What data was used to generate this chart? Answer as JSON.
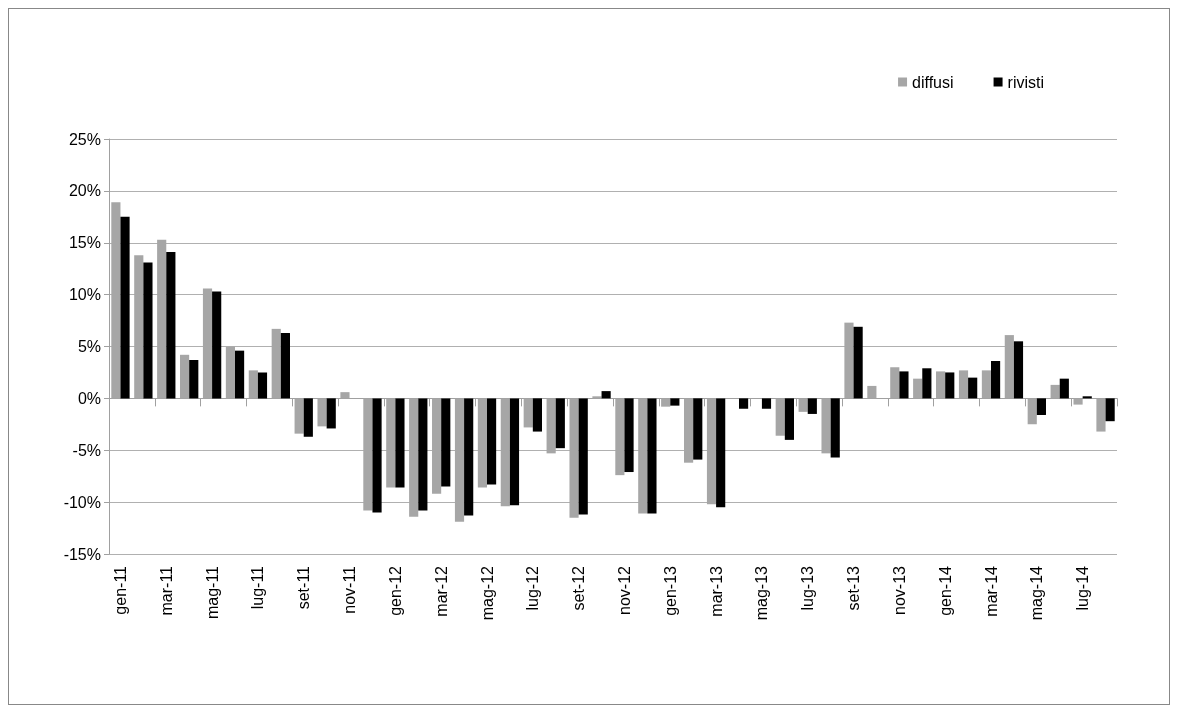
{
  "chart_data": {
    "type": "bar",
    "categories": [
      "gen-11",
      null,
      "mar-11",
      null,
      "mag-11",
      null,
      "lug-11",
      null,
      "set-11",
      null,
      "nov-11",
      null,
      "gen-12",
      null,
      "mar-12",
      null,
      "mag-12",
      null,
      "lug-12",
      null,
      "set-12",
      null,
      "nov-12",
      null,
      "gen-13",
      null,
      "mar-13",
      null,
      "mag-13",
      null,
      "lug-13",
      null,
      "set-13",
      null,
      "nov-13",
      null,
      "gen-14",
      null,
      "mar-14",
      null,
      "mag-14",
      null,
      "lug-14",
      null
    ],
    "series": [
      {
        "name": "diffusi",
        "color": "#a6a6a6",
        "values": [
          18.9,
          13.8,
          15.3,
          4.2,
          10.6,
          5.0,
          2.7,
          6.7,
          -3.4,
          -2.7,
          0.6,
          -10.8,
          -8.6,
          -11.4,
          -9.2,
          -11.9,
          -8.6,
          -10.4,
          -2.8,
          -5.3,
          -11.5,
          0.2,
          -7.4,
          -11.1,
          -0.8,
          -6.2,
          -10.2,
          0,
          0,
          -3.6,
          -1.3,
          -5.3,
          7.3,
          1.2,
          3.0,
          1.9,
          2.6,
          2.7,
          2.7,
          6.1,
          -2.5,
          1.3,
          -0.6,
          -3.2
        ]
      },
      {
        "name": "rivisti",
        "color": "#000000",
        "values": [
          17.5,
          13.1,
          14.1,
          3.7,
          10.3,
          4.6,
          2.5,
          6.3,
          -3.7,
          -2.9,
          0,
          -11.0,
          -8.6,
          -10.8,
          -8.5,
          -11.3,
          -8.3,
          -10.3,
          -3.2,
          -4.8,
          -11.2,
          0.7,
          -7.1,
          -11.1,
          -0.7,
          -5.9,
          -10.5,
          -1.0,
          -1.0,
          -4.0,
          -1.5,
          -5.7,
          6.9,
          0,
          2.6,
          2.9,
          2.5,
          2.0,
          3.6,
          5.5,
          -1.6,
          1.9,
          0.2,
          -2.2
        ]
      }
    ],
    "ylim": [
      -15,
      25
    ],
    "yticks": [
      {
        "value": -15,
        "label": "-15%"
      },
      {
        "value": -10,
        "label": "-10%"
      },
      {
        "value": -5,
        "label": "-5%"
      },
      {
        "value": 0,
        "label": "0%"
      },
      {
        "value": 5,
        "label": "5%"
      },
      {
        "value": 10,
        "label": "10%"
      },
      {
        "value": 15,
        "label": "15%"
      },
      {
        "value": 20,
        "label": "20%"
      },
      {
        "value": 25,
        "label": "25%"
      }
    ],
    "grid": "y",
    "legend": "top right"
  }
}
